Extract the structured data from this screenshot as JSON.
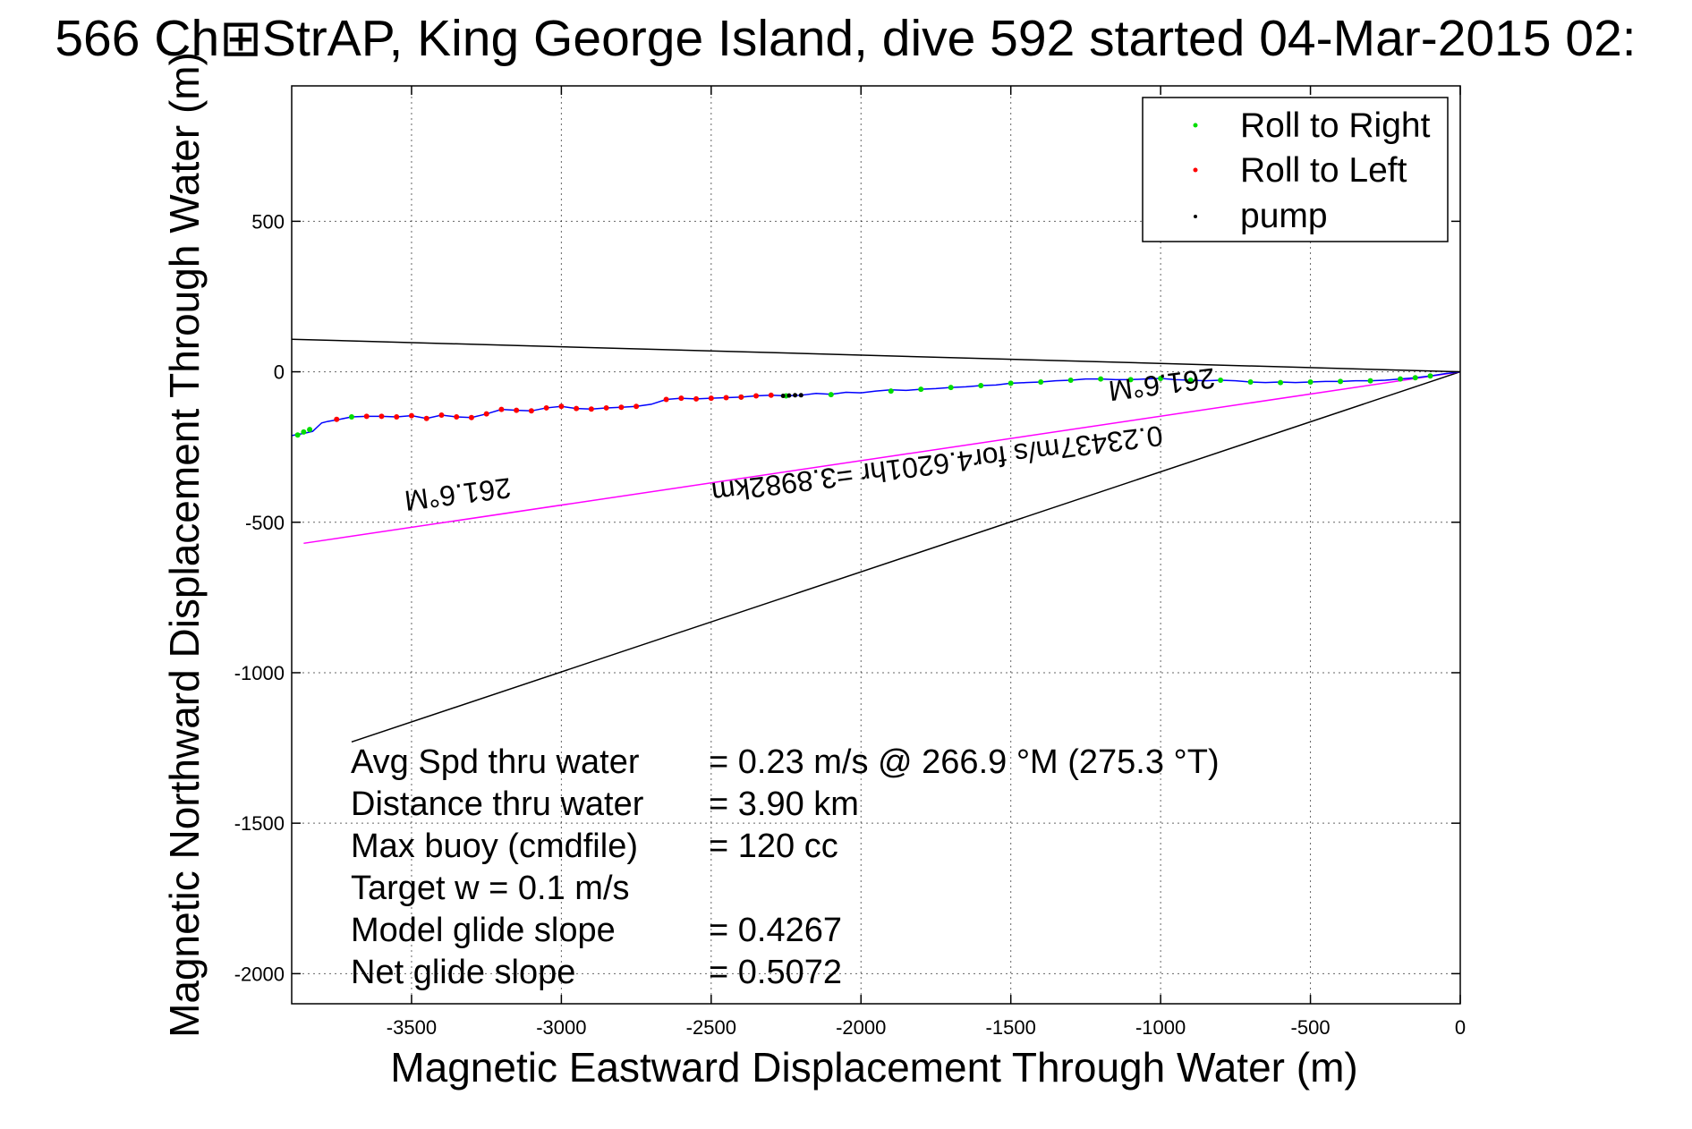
{
  "chart_data": {
    "type": "scatter",
    "title": "566 Ch\u0000StrAP, King George Island, dive 592 started 04-Mar-2015 02:",
    "xlabel": "Magnetic Eastward Displacement Through Water (m)",
    "ylabel": "Magnetic Northward Displacement Through Water (m)",
    "xlim": [
      -3900,
      0
    ],
    "ylim": [
      -2100,
      950
    ],
    "xticks": [
      -3500,
      -3000,
      -2500,
      -2000,
      -1500,
      -1000,
      -500,
      0
    ],
    "yticks": [
      500,
      0,
      -500,
      -1000,
      -1500,
      -2000
    ],
    "grid": true,
    "legend_position": "top-right",
    "legend": [
      {
        "name": "Roll to Right",
        "color": "#00dd00"
      },
      {
        "name": "Roll to Left",
        "color": "#ff0000"
      },
      {
        "name": "pump",
        "color": "#000000"
      }
    ],
    "track_color": "#0000ff",
    "track": {
      "x": [
        -3900,
        -3860,
        -3830,
        -3800,
        -3780,
        -3740,
        -3700,
        -3650,
        -3600,
        -3550,
        -3500,
        -3450,
        -3400,
        -3350,
        -3300,
        -3250,
        -3200,
        -3150,
        -3100,
        -3050,
        -3000,
        -2950,
        -2900,
        -2850,
        -2800,
        -2750,
        -2700,
        -2650,
        -2600,
        -2550,
        -2500,
        -2450,
        -2400,
        -2350,
        -2300,
        -2250,
        -2200,
        -2150,
        -2100,
        -2050,
        -2000,
        -1950,
        -1900,
        -1850,
        -1800,
        -1750,
        -1700,
        -1650,
        -1600,
        -1550,
        -1500,
        -1450,
        -1400,
        -1350,
        -1300,
        -1250,
        -1200,
        -1150,
        -1100,
        -1050,
        -1000,
        -950,
        -900,
        -850,
        -800,
        -750,
        -700,
        -650,
        -600,
        -550,
        -500,
        -450,
        -400,
        -350,
        -300,
        -250,
        -200,
        -150,
        -100,
        -50,
        0
      ],
      "y": [
        -212,
        -205,
        -198,
        -170,
        -165,
        -158,
        -150,
        -148,
        -148,
        -150,
        -146,
        -155,
        -144,
        -150,
        -152,
        -140,
        -125,
        -128,
        -130,
        -120,
        -115,
        -122,
        -124,
        -120,
        -118,
        -115,
        -108,
        -92,
        -88,
        -90,
        -88,
        -86,
        -84,
        -80,
        -78,
        -80,
        -78,
        -72,
        -75,
        -68,
        -70,
        -64,
        -60,
        -62,
        -58,
        -56,
        -52,
        -50,
        -46,
        -44,
        -38,
        -36,
        -34,
        -30,
        -28,
        -24,
        -24,
        -26,
        -26,
        -24,
        -22,
        -26,
        -28,
        -30,
        -28,
        -30,
        -34,
        -36,
        -34,
        -36,
        -34,
        -32,
        -32,
        -30,
        -30,
        -28,
        -24,
        -20,
        -14,
        -6,
        0
      ]
    },
    "roll_right": {
      "x": [
        -3880,
        -3860,
        -3840,
        -3700,
        -2400,
        -2250,
        -2100,
        -1900,
        -1800,
        -1700,
        -1600,
        -1500,
        -1400,
        -1300,
        -1200,
        -1100,
        -1000,
        -900,
        -800,
        -700,
        -600,
        -500,
        -400,
        -300,
        -200,
        -150,
        -100
      ],
      "y": [
        -210,
        -200,
        -192,
        -150,
        -84,
        -80,
        -76,
        -64,
        -58,
        -52,
        -46,
        -38,
        -34,
        -28,
        -24,
        -26,
        -22,
        -28,
        -28,
        -34,
        -36,
        -34,
        -32,
        -30,
        -24,
        -20,
        -14
      ]
    },
    "roll_left": {
      "x": [
        -3750,
        -3650,
        -3600,
        -3550,
        -3500,
        -3450,
        -3400,
        -3350,
        -3300,
        -3250,
        -3200,
        -3150,
        -3100,
        -3050,
        -3000,
        -2950,
        -2900,
        -2850,
        -2800,
        -2750,
        -2650,
        -2600,
        -2550,
        -2500,
        -2450,
        -2400,
        -2350,
        -2300
      ],
      "y": [
        -158,
        -148,
        -148,
        -150,
        -146,
        -155,
        -144,
        -150,
        -152,
        -140,
        -125,
        -128,
        -130,
        -120,
        -115,
        -122,
        -124,
        -120,
        -118,
        -115,
        -92,
        -88,
        -90,
        -88,
        -86,
        -84,
        -80,
        -78
      ]
    },
    "pump": {
      "x": [
        -2260,
        -2240,
        -2220,
        -2200
      ],
      "y": [
        -80,
        -79,
        -78,
        -78
      ]
    },
    "lines": [
      {
        "name": "bearing-line-top",
        "color": "#000000",
        "x": [
          -3900,
          0
        ],
        "y": [
          108,
          0
        ]
      },
      {
        "name": "bearing-line-bottom",
        "color": "#000000",
        "x": [
          -3700,
          0
        ],
        "y": [
          -1230,
          0
        ]
      },
      {
        "name": "current-line",
        "color": "#ff00ff",
        "x": [
          -3860,
          0
        ],
        "y": [
          -570,
          0
        ]
      }
    ],
    "rotated_labels": [
      {
        "text": "0.23437m/s for4.6201hr =3.8982km",
        "x": -1750,
        "y": -275,
        "angle": 172.7
      },
      {
        "text": "261.6°M",
        "x": -3350,
        "y": -375,
        "angle": 172.7
      },
      {
        "text": "261.6°M",
        "x": -1000,
        "y": -10,
        "angle": 172.7
      }
    ],
    "stats": [
      {
        "label": "Avg Spd thru water",
        "value": "=  0.23 m/s @ 266.9 °M (275.3 °T)"
      },
      {
        "label": "Distance thru water",
        "value": "=  3.90 km"
      },
      {
        "label": "Max buoy (cmdfile)",
        "value": "= 120 cc"
      },
      {
        "label": "Target w    = 0.1 m/s",
        "value": ""
      },
      {
        "label": "Model glide slope",
        "value": "= 0.4267"
      },
      {
        "label": "Net glide slope",
        "value": "= 0.5072"
      }
    ]
  }
}
